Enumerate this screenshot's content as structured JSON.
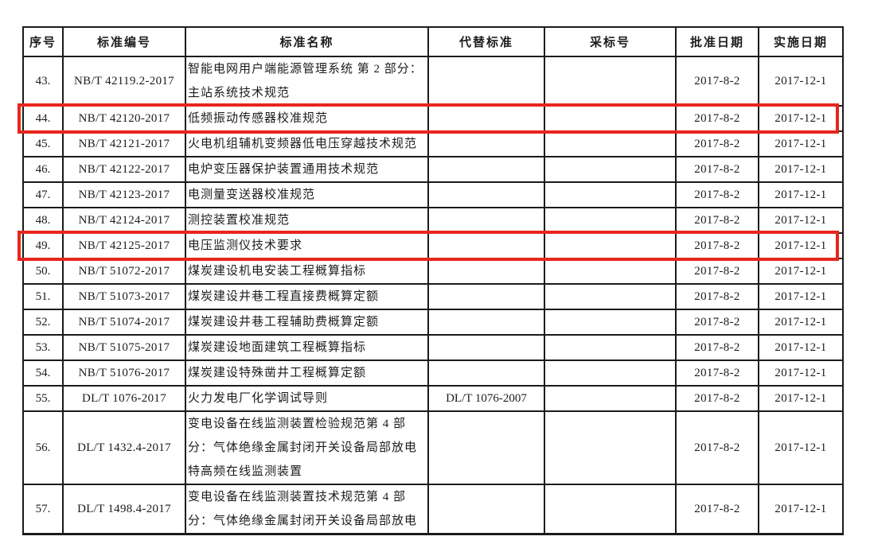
{
  "table": {
    "columns": {
      "serial": "序号",
      "code": "标准编号",
      "name": "标准名称",
      "replaced": "代替标准",
      "adopted": "采标号",
      "approval": "批准日期",
      "implementation": "实施日期"
    },
    "highlight_color": "#e8251c",
    "rows": [
      {
        "no": "43.",
        "code": "NB/T 42119.2-2017",
        "name": "智能电网用户端能源管理系统 第 2 部分：主站系统技术规范",
        "replaced": "",
        "adopted": "",
        "approval": "2017-8-2",
        "implementation": "2017-12-1",
        "highlighted": false
      },
      {
        "no": "44.",
        "code": "NB/T 42120-2017",
        "name": "低频振动传感器校准规范",
        "replaced": "",
        "adopted": "",
        "approval": "2017-8-2",
        "implementation": "2017-12-1",
        "highlighted": true
      },
      {
        "no": "45.",
        "code": "NB/T 42121-2017",
        "name": "火电机组辅机变频器低电压穿越技术规范",
        "replaced": "",
        "adopted": "",
        "approval": "2017-8-2",
        "implementation": "2017-12-1",
        "highlighted": false
      },
      {
        "no": "46.",
        "code": "NB/T 42122-2017",
        "name": "电炉变压器保护装置通用技术规范",
        "replaced": "",
        "adopted": "",
        "approval": "2017-8-2",
        "implementation": "2017-12-1",
        "highlighted": false
      },
      {
        "no": "47.",
        "code": "NB/T 42123-2017",
        "name": "电测量变送器校准规范",
        "replaced": "",
        "adopted": "",
        "approval": "2017-8-2",
        "implementation": "2017-12-1",
        "highlighted": false
      },
      {
        "no": "48.",
        "code": "NB/T 42124-2017",
        "name": "测控装置校准规范",
        "replaced": "",
        "adopted": "",
        "approval": "2017-8-2",
        "implementation": "2017-12-1",
        "highlighted": false
      },
      {
        "no": "49.",
        "code": "NB/T 42125-2017",
        "name": "电压监测仪技术要求",
        "replaced": "",
        "adopted": "",
        "approval": "2017-8-2",
        "implementation": "2017-12-1",
        "highlighted": true
      },
      {
        "no": "50.",
        "code": "NB/T 51072-2017",
        "name": "煤炭建设机电安装工程概算指标",
        "replaced": "",
        "adopted": "",
        "approval": "2017-8-2",
        "implementation": "2017-12-1",
        "highlighted": false
      },
      {
        "no": "51.",
        "code": "NB/T 51073-2017",
        "name": "煤炭建设井巷工程直接费概算定额",
        "replaced": "",
        "adopted": "",
        "approval": "2017-8-2",
        "implementation": "2017-12-1",
        "highlighted": false
      },
      {
        "no": "52.",
        "code": "NB/T 51074-2017",
        "name": "煤炭建设井巷工程辅助费概算定额",
        "replaced": "",
        "adopted": "",
        "approval": "2017-8-2",
        "implementation": "2017-12-1",
        "highlighted": false
      },
      {
        "no": "53.",
        "code": "NB/T 51075-2017",
        "name": "煤炭建设地面建筑工程概算指标",
        "replaced": "",
        "adopted": "",
        "approval": "2017-8-2",
        "implementation": "2017-12-1",
        "highlighted": false
      },
      {
        "no": "54.",
        "code": "NB/T 51076-2017",
        "name": "煤炭建设特殊凿井工程概算定额",
        "replaced": "",
        "adopted": "",
        "approval": "2017-8-2",
        "implementation": "2017-12-1",
        "highlighted": false
      },
      {
        "no": "55.",
        "code": "DL/T 1076-2017",
        "name": "火力发电厂化学调试导则",
        "replaced": "DL/T 1076-2007",
        "adopted": "",
        "approval": "2017-8-2",
        "implementation": "2017-12-1",
        "highlighted": false
      },
      {
        "no": "56.",
        "code": "DL/T 1432.4-2017",
        "name": "变电设备在线监测装置检验规范第 4 部分：气体绝缘金属封闭开关设备局部放电特高频在线监测装置",
        "replaced": "",
        "adopted": "",
        "approval": "2017-8-2",
        "implementation": "2017-12-1",
        "highlighted": false
      },
      {
        "no": "57.",
        "code": "DL/T 1498.4-2017",
        "name": "变电设备在线监测装置技术规范第 4 部分：气体绝缘金属封闭开关设备局部放电",
        "replaced": "",
        "adopted": "",
        "approval": "2017-8-2",
        "implementation": "2017-12-1",
        "highlighted": false
      }
    ]
  }
}
